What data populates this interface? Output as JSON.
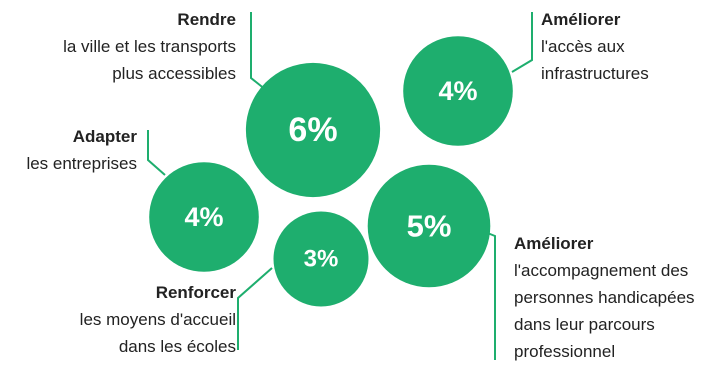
{
  "chart_data": {
    "type": "bubble",
    "colors": {
      "bubble": "#1EAE6E",
      "line": "#1EAE6E",
      "text": "#222222"
    },
    "items": [
      {
        "value": 6,
        "display": "6%",
        "title": "Rendre",
        "lines": [
          "la ville et les transports",
          "plus accessibles"
        ]
      },
      {
        "value": 4,
        "display": "4%",
        "title": "Améliorer",
        "lines": [
          "l'accès aux",
          "infrastructures"
        ]
      },
      {
        "value": 4,
        "display": "4%",
        "title": "Adapter",
        "lines": [
          "les entreprises"
        ]
      },
      {
        "value": 3,
        "display": "3%",
        "title": "Renforcer",
        "lines": [
          "les moyens d'accueil",
          "dans les écoles"
        ]
      },
      {
        "value": 5,
        "display": "5%",
        "title": "Améliorer",
        "lines": [
          "l'accompagnement des",
          "personnes handicapées",
          "dans leur parcours",
          "professionnel"
        ]
      }
    ]
  }
}
